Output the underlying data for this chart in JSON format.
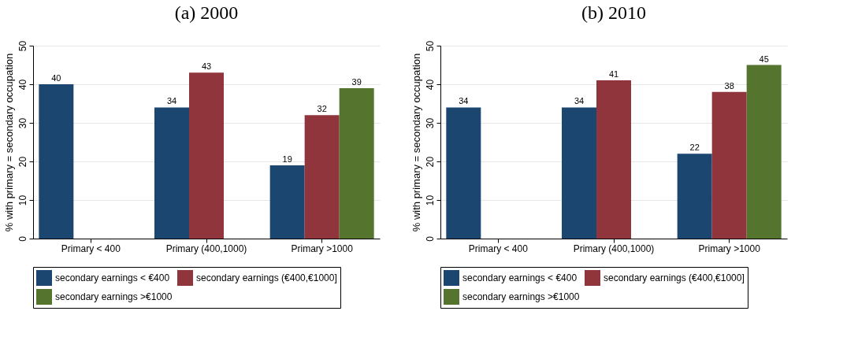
{
  "chart_data": [
    {
      "type": "bar",
      "title": "(a) 2000",
      "ylabel": "% with primary = secondary occupation",
      "categories": [
        "Primary < 400",
        "Primary (400,1000)",
        "Primary >1000"
      ],
      "ylim": [
        0,
        50
      ],
      "yticks": [
        0,
        10,
        20,
        30,
        40,
        50
      ],
      "grid": "y",
      "legend": "bottom",
      "data_labels": true,
      "series": [
        {
          "name": "secondary earnings < €400",
          "color": "#1a4670",
          "values": [
            40,
            34,
            19
          ]
        },
        {
          "name": "secondary earnings (€400,€1000]",
          "color": "#90353b",
          "values": [
            null,
            43,
            32
          ]
        },
        {
          "name": "secondary earnings >€1000",
          "color": "#55752f",
          "values": [
            null,
            null,
            39
          ]
        }
      ]
    },
    {
      "type": "bar",
      "title": "(b) 2010",
      "ylabel": "% with primary = secondary occupation",
      "categories": [
        "Primary < 400",
        "Primary (400,1000)",
        "Primary >1000"
      ],
      "ylim": [
        0,
        50
      ],
      "yticks": [
        0,
        10,
        20,
        30,
        40,
        50
      ],
      "grid": "y",
      "legend": "bottom",
      "data_labels": true,
      "series": [
        {
          "name": "secondary earnings < €400",
          "color": "#1a4670",
          "values": [
            34,
            34,
            22
          ]
        },
        {
          "name": "secondary earnings (€400,€1000]",
          "color": "#90353b",
          "values": [
            null,
            41,
            38
          ]
        },
        {
          "name": "secondary earnings >€1000",
          "color": "#55752f",
          "values": [
            null,
            null,
            45
          ]
        }
      ]
    }
  ]
}
